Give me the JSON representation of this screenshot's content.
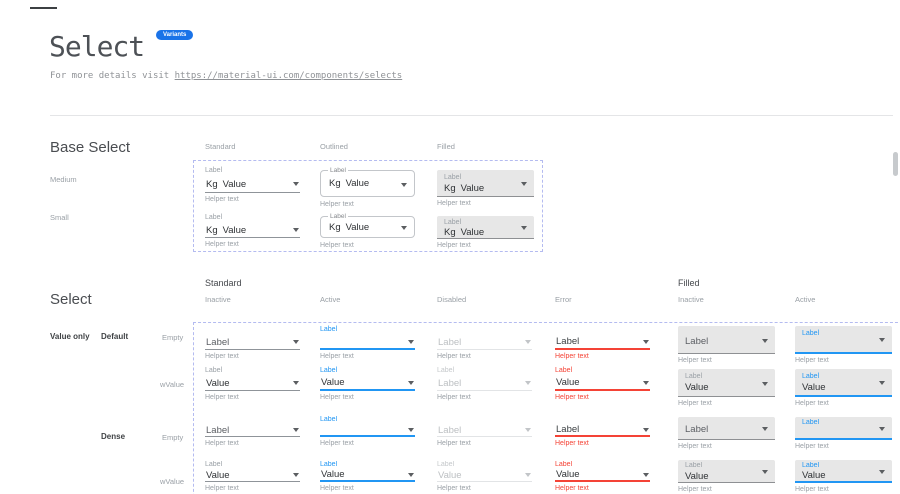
{
  "header": {
    "title": "Select",
    "badge": "Variants",
    "subtitle_prefix": "For more details visit ",
    "subtitle_link": "https://material-ui.com/components/selects"
  },
  "icons": {
    "dropdown_arrow": "triangle-down-icon",
    "scrollbar": "scrollbar-thumb"
  },
  "colors": {
    "accent_blue": "#2196f3",
    "error_red": "#f44336",
    "badge_blue": "#1a73e8",
    "dashed_outline": "#b4bbf0",
    "filled_bg": "#e7e7e7"
  },
  "base_select": {
    "heading": "Base Select",
    "column_headers": [
      "Standard",
      "Outlined",
      "Filled"
    ],
    "row_labels": [
      "Medium",
      "Small"
    ],
    "cells": [
      {
        "name": "base-select-standard-medium",
        "variant": "standard",
        "state": "inactive",
        "pos": "p-bm0 med",
        "float_label": "Label",
        "adornment": "Kg",
        "value": "Value",
        "helper": "Helper text"
      },
      {
        "name": "base-select-outlined-medium",
        "variant": "outlined",
        "state": "inactive",
        "pos": "p-bm1 med",
        "float_label": "Label",
        "adornment": "Kg",
        "value": "Value",
        "helper": "Helper text"
      },
      {
        "name": "base-select-filled-medium",
        "variant": "filled",
        "state": "inactive",
        "pos": "p-bm2 med fillbase",
        "float_label": "Label",
        "adornment": "Kg",
        "value": "Value",
        "helper": "Helper text"
      },
      {
        "name": "base-select-standard-small",
        "variant": "standard",
        "state": "inactive",
        "pos": "p-bs0",
        "float_label": "Label",
        "adornment": "Kg",
        "value": "Value",
        "helper": "Helper text"
      },
      {
        "name": "base-select-outlined-small",
        "variant": "outlined",
        "state": "inactive",
        "pos": "p-bs1 sm",
        "float_label": "Label",
        "adornment": "Kg",
        "value": "Value",
        "helper": "Helper text"
      },
      {
        "name": "base-select-filled-small",
        "variant": "filled",
        "state": "inactive",
        "pos": "p-bs2 sm fillbase",
        "float_label": "Label",
        "adornment": "Kg",
        "value": "Value",
        "helper": "Helper text"
      }
    ]
  },
  "select_section": {
    "heading": "Select",
    "group_headers": [
      "Standard",
      "Filled"
    ],
    "state_headers": [
      "Inactive",
      "Active",
      "Disabled",
      "Error",
      "Inactive",
      "Active"
    ],
    "category_label": "Value only",
    "size_labels": [
      "Default",
      "Dense"
    ],
    "content_labels": [
      "Empty",
      "wValue",
      "Empty",
      "wValue"
    ],
    "cells": [
      {
        "name": "select-standard-inactive-empty",
        "variant": "standard",
        "state": "inactive",
        "col": "c0",
        "row": "r0",
        "float_label": null,
        "value": "Label",
        "rest": true,
        "helper": "Helper text"
      },
      {
        "name": "select-standard-active-empty",
        "variant": "standard",
        "state": "active",
        "col": "c1",
        "row": "r0",
        "float_label": "Label",
        "value": null,
        "helper": "Helper text"
      },
      {
        "name": "select-standard-disabled-empty",
        "variant": "standard",
        "state": "disabled",
        "col": "c2",
        "row": "r0",
        "float_label": null,
        "value": "Label",
        "rest": true,
        "helper": "Helper text"
      },
      {
        "name": "select-standard-error-empty",
        "variant": "standard",
        "state": "error",
        "col": "c3",
        "row": "r0",
        "float_label": null,
        "value": "Label",
        "rest": true,
        "helper": "Helper text"
      },
      {
        "name": "select-filled-inactive-empty",
        "variant": "filled",
        "state": "inactive",
        "col": "c4",
        "row": "r0",
        "float_label": null,
        "value": "Label",
        "rest": true,
        "helper": "Helper text"
      },
      {
        "name": "select-filled-active-empty",
        "variant": "filled",
        "state": "active",
        "col": "c5",
        "row": "r0",
        "float_label": "Label",
        "value": null,
        "helper": "Helper text"
      },
      {
        "name": "select-standard-inactive-wvalue",
        "variant": "standard",
        "state": "inactive",
        "col": "c0",
        "row": "r1",
        "float_label": "Label",
        "value": "Value",
        "helper": "Helper text"
      },
      {
        "name": "select-standard-active-wvalue",
        "variant": "standard",
        "state": "active",
        "col": "c1",
        "row": "r1",
        "float_label": "Label",
        "value": "Value",
        "helper": "Helper text"
      },
      {
        "name": "select-standard-disabled-wvalue",
        "variant": "standard",
        "state": "disabled",
        "col": "c2",
        "row": "r1",
        "float_label": "Label",
        "value": "Label",
        "helper": "Helper text"
      },
      {
        "name": "select-standard-error-wvalue",
        "variant": "standard",
        "state": "error",
        "col": "c3",
        "row": "r1",
        "float_label": "Label",
        "value": "Value",
        "helper": "Helper text"
      },
      {
        "name": "select-filled-inactive-wvalue",
        "variant": "filled",
        "state": "inactive",
        "col": "c4",
        "row": "r1",
        "float_label": "Label",
        "value": "Value",
        "helper": "Helper text"
      },
      {
        "name": "select-filled-active-wvalue",
        "variant": "filled",
        "state": "active",
        "col": "c5",
        "row": "r1",
        "float_label": "Label",
        "value": "Value",
        "helper": "Helper text"
      },
      {
        "name": "select-standard-inactive-empty-dense",
        "variant": "standard",
        "state": "inactive",
        "dense": true,
        "col": "c0",
        "row": "r2",
        "float_label": null,
        "value": "Label",
        "rest": true,
        "helper": "Helper text"
      },
      {
        "name": "select-standard-active-empty-dense",
        "variant": "standard",
        "state": "active",
        "dense": true,
        "col": "c1",
        "row": "r2",
        "float_label": "Label",
        "value": null,
        "helper": "Helper text"
      },
      {
        "name": "select-standard-disabled-empty-dense",
        "variant": "standard",
        "state": "disabled",
        "dense": true,
        "col": "c2",
        "row": "r2",
        "float_label": null,
        "value": "Label",
        "rest": true,
        "helper": "Helper text"
      },
      {
        "name": "select-standard-error-empty-dense",
        "variant": "standard",
        "state": "error",
        "dense": true,
        "col": "c3",
        "row": "r2",
        "float_label": null,
        "value": "Label",
        "rest": true,
        "helper": "Helper text"
      },
      {
        "name": "select-filled-inactive-empty-dense",
        "variant": "filled",
        "state": "inactive",
        "dense": true,
        "col": "c4",
        "row": "r2",
        "float_label": null,
        "value": "Label",
        "rest": true,
        "helper": "Helper text"
      },
      {
        "name": "select-filled-active-empty-dense",
        "variant": "filled",
        "state": "active",
        "dense": true,
        "col": "c5",
        "row": "r2",
        "float_label": "Label",
        "value": null,
        "helper": "Helper text"
      },
      {
        "name": "select-standard-inactive-wvalue-dense",
        "variant": "standard",
        "state": "inactive",
        "dense": true,
        "col": "c0",
        "row": "r3",
        "float_label": "Label",
        "value": "Value",
        "helper": "Helper text"
      },
      {
        "name": "select-standard-active-wvalue-dense",
        "variant": "standard",
        "state": "active",
        "dense": true,
        "col": "c1",
        "row": "r3",
        "float_label": "Label",
        "value": "Value",
        "helper": "Helper text"
      },
      {
        "name": "select-standard-disabled-wvalue-dense",
        "variant": "standard",
        "state": "disabled",
        "dense": true,
        "col": "c2",
        "row": "r3",
        "float_label": "Label",
        "value": "Value",
        "helper": "Helper text"
      },
      {
        "name": "select-standard-error-wvalue-dense",
        "variant": "standard",
        "state": "error",
        "dense": true,
        "col": "c3",
        "row": "r3",
        "float_label": "Label",
        "value": "Value",
        "helper": "Helper text"
      },
      {
        "name": "select-filled-inactive-wvalue-dense",
        "variant": "filled",
        "state": "inactive",
        "dense": true,
        "col": "c4",
        "row": "r3",
        "float_label": "Label",
        "value": "Value",
        "helper": "Helper text"
      },
      {
        "name": "select-filled-active-wvalue-dense",
        "variant": "filled",
        "state": "active",
        "dense": true,
        "col": "c5",
        "row": "r3",
        "float_label": "Label",
        "value": "Value",
        "helper": "Helper text"
      }
    ]
  }
}
